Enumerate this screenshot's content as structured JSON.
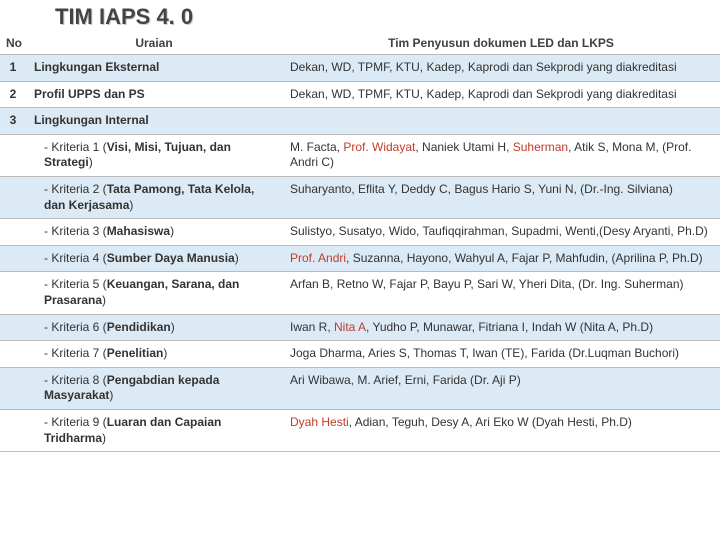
{
  "title": "TIM IAPS 4. 0",
  "headers": {
    "no": "No",
    "uraian": "Uraian",
    "tim": "Tim Penyusun dokumen LED dan LKPS"
  },
  "rows": [
    {
      "no": "1",
      "alt": true,
      "uraian_html": "<b>Lingkungan Eksternal</b>",
      "tim_html": "Dekan, WD, TPMF, KTU, Kadep, Kaprodi dan Sekprodi yang diakreditasi"
    },
    {
      "no": "2",
      "alt": false,
      "uraian_html": "<b>Profil UPPS dan PS</b>",
      "tim_html": "Dekan, WD, TPMF, KTU, Kadep, Kaprodi dan Sekprodi yang diakreditasi"
    },
    {
      "no": "3",
      "alt": true,
      "uraian_html": "<b>Lingkungan Internal</b>",
      "tim_html": ""
    },
    {
      "no": "",
      "alt": false,
      "sub": true,
      "uraian_html": "- Kriteria 1 (<b>Visi, Misi, Tujuan, dan Strategi</b>)",
      "tim_html": "M. Facta, <span class='red'>Prof. Widayat</span>, Naniek Utami H, <span class='red'>Suherman</span>, Atik S, Mona M, (Prof. Andri C)"
    },
    {
      "no": "",
      "alt": true,
      "sub": true,
      "uraian_html": "- Kriteria 2 (<b>Tata Pamong, Tata Kelola, dan Kerjasama</b>)",
      "tim_html": "Suharyanto, Eflita Y, Deddy C, Bagus Hario S, Yuni N, (Dr.-Ing. Silviana)"
    },
    {
      "no": "",
      "alt": false,
      "sub": true,
      "uraian_html": "- Kriteria 3 (<b>Mahasiswa</b>)",
      "tim_html": "Sulistyo, Susatyo, Wido, Taufiqqirahman, Supadmi, Wenti,(Desy Aryanti, Ph.D)"
    },
    {
      "no": "",
      "alt": true,
      "sub": true,
      "uraian_html": "- Kriteria 4 (<b>Sumber Daya Manusia</b>)",
      "tim_html": "<span class='red'>Prof. Andri</span>, Suzanna, Hayono, Wahyul A, Fajar P, Mahfudin, (Aprilina P, Ph.D)"
    },
    {
      "no": "",
      "alt": false,
      "sub": true,
      "uraian_html": "- Kriteria 5 (<b>Keuangan, Sarana, dan Prasarana</b>)",
      "tim_html": "Arfan B, Retno W, Fajar P, Bayu P, Sari W, Yheri Dita, (Dr. Ing. Suherman)"
    },
    {
      "no": "",
      "alt": true,
      "sub": true,
      "uraian_html": "- Kriteria 6 (<b>Pendidikan</b>)",
      "tim_html": "Iwan R, <span class='red'>Nita A</span>, Yudho P, Munawar, Fitriana I, Indah W (Nita A, Ph.D)"
    },
    {
      "no": "",
      "alt": false,
      "sub": true,
      "uraian_html": "- Kriteria 7 (<b>Penelitian</b>)",
      "tim_html": "Joga Dharma, Aries S, Thomas T, Iwan (TE), Farida (Dr.Luqman Buchori)"
    },
    {
      "no": "",
      "alt": true,
      "sub": true,
      "uraian_html": "- Kriteria 8 (<b>Pengabdian kepada Masyarakat</b>)",
      "tim_html": "Ari Wibawa, M. Arief, Erni, Farida (Dr. Aji P)"
    },
    {
      "no": "",
      "alt": false,
      "sub": true,
      "uraian_html": "- Kriteria 9 (<b>Luaran dan Capaian Tridharma</b>)",
      "tim_html": "<span class='red'>Dyah Hesti</span>, Adian, Teguh, Desy A, Ari Eko W (Dyah Hesti, Ph.D)"
    }
  ]
}
